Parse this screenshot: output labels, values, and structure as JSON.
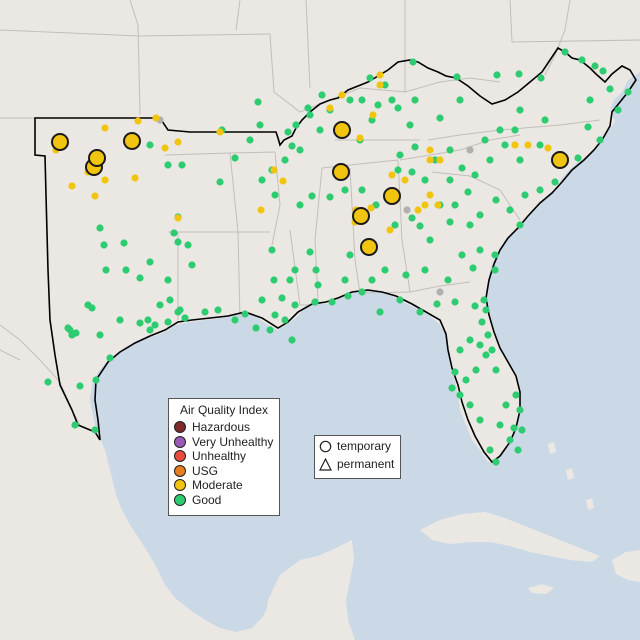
{
  "colors": {
    "ocean": "#cbd9e7",
    "land": "#ebe8e4",
    "border": "#c2bfbb",
    "region_outline": "#000000",
    "hazardous": "#7e2a2a",
    "very_unhealthy": "#9b59b6",
    "unhealthy": "#e74c3c",
    "usg": "#e67e22",
    "moderate": "#f1c40f",
    "good": "#2ecc71",
    "offline": "#b0b0b0"
  },
  "legend": {
    "title": "Air Quality Index",
    "items": [
      {
        "label": "Hazardous",
        "color": "#7e2a2a"
      },
      {
        "label": "Very Unhealthy",
        "color": "#9b59b6"
      },
      {
        "label": "Unhealthy",
        "color": "#e74c3c"
      },
      {
        "label": "USG",
        "color": "#e67e22"
      },
      {
        "label": "Moderate",
        "color": "#f1c40f"
      },
      {
        "label": "Good",
        "color": "#2ecc71"
      }
    ]
  },
  "type_legend": {
    "temporary": "temporary",
    "permanent": "permanent"
  }
}
